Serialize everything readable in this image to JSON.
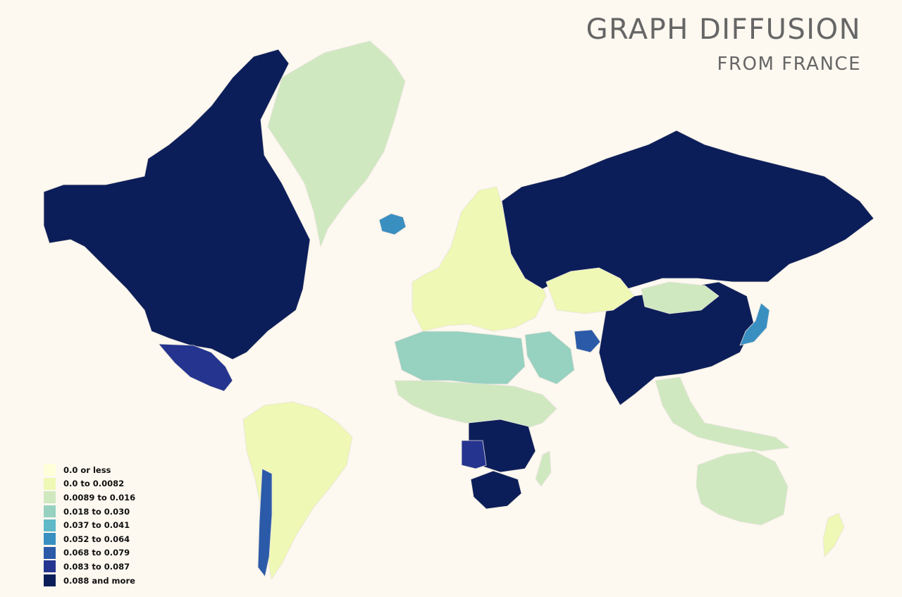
{
  "title": "GRAPH DIFFUSION",
  "subtitle": "FROM FRANCE",
  "legend": {
    "items": [
      {
        "label": "0.0 or less",
        "color": "#ffffd9"
      },
      {
        "label": "0.0 to 0.0082",
        "color": "#eff8b4"
      },
      {
        "label": "0.0089 to 0.016",
        "color": "#cfe8c0"
      },
      {
        "label": "0.018 to 0.030",
        "color": "#97d1c0"
      },
      {
        "label": "0.037 to 0.041",
        "color": "#5fb9c8"
      },
      {
        "label": "0.052 to 0.064",
        "color": "#3a8fc1"
      },
      {
        "label": "0.068 to 0.079",
        "color": "#2b5aa8"
      },
      {
        "label": "0.083 to 0.087",
        "color": "#25348f"
      },
      {
        "label": "0.088 and more",
        "color": "#0c1e59"
      }
    ]
  },
  "regions": [
    {
      "id": "canada-usa",
      "bin": 8
    },
    {
      "id": "greenland",
      "bin": 2
    },
    {
      "id": "iceland",
      "bin": 5
    },
    {
      "id": "mexico",
      "bin": 7
    },
    {
      "id": "south-america",
      "bin": 1
    },
    {
      "id": "chile-coast",
      "bin": 6
    },
    {
      "id": "europe",
      "bin": 1
    },
    {
      "id": "russia",
      "bin": 8
    },
    {
      "id": "china-india",
      "bin": 8
    },
    {
      "id": "kazakhstan",
      "bin": 1
    },
    {
      "id": "mongolia",
      "bin": 2
    },
    {
      "id": "north-africa",
      "bin": 3
    },
    {
      "id": "africa",
      "bin": 2
    },
    {
      "id": "central-africa",
      "bin": 8
    },
    {
      "id": "angola",
      "bin": 7
    },
    {
      "id": "south-africa",
      "bin": 8
    },
    {
      "id": "madagascar",
      "bin": 2
    },
    {
      "id": "arabia",
      "bin": 3
    },
    {
      "id": "afghanistan",
      "bin": 6
    },
    {
      "id": "japan",
      "bin": 5
    },
    {
      "id": "southeast-asia",
      "bin": 2
    },
    {
      "id": "australia",
      "bin": 2
    },
    {
      "id": "new-zealand",
      "bin": 1
    }
  ]
}
